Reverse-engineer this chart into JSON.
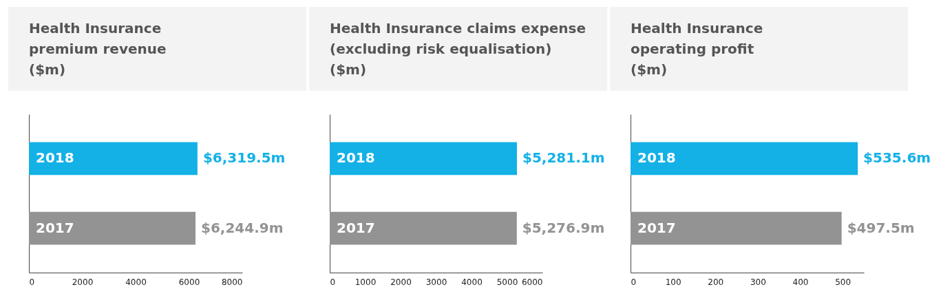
{
  "chart_data": [
    {
      "type": "bar",
      "orientation": "horizontal",
      "title": "Health Insurance\npremium revenue\n($m)",
      "categories": [
        "2018",
        "2017"
      ],
      "values": [
        6319.5,
        6244.9
      ],
      "colors": [
        "#14b1e7",
        "#939393"
      ],
      "value_labels": [
        "$6,319.5m",
        "$6,244.9m"
      ],
      "xlim": [
        0,
        8000
      ],
      "xticks": [
        0,
        2000,
        4000,
        6000,
        8000
      ],
      "tick_labels": "x",
      "grid": false
    },
    {
      "type": "bar",
      "orientation": "horizontal",
      "title": "Health Insurance claims expense\n(excluding risk equalisation)\n($m)",
      "categories": [
        "2018",
        "2017"
      ],
      "values": [
        5281.1,
        5276.9
      ],
      "colors": [
        "#14b1e7",
        "#939393"
      ],
      "value_labels": [
        "$5,281.1m",
        "$5,276.9m"
      ],
      "xlim": [
        0,
        6000
      ],
      "xticks": [
        0,
        1000,
        2000,
        3000,
        4000,
        5000,
        6000
      ],
      "tick_labels": "x",
      "grid": false
    },
    {
      "type": "bar",
      "orientation": "horizontal",
      "title": "Health Insurance\noperating profit\n($m)",
      "categories": [
        "2018",
        "2017"
      ],
      "values": [
        535.6,
        497.5
      ],
      "colors": [
        "#14b1e7",
        "#939393"
      ],
      "value_labels": [
        "$535.6m",
        "$497.5m"
      ],
      "xlim": [
        0,
        550
      ],
      "xticks": [
        0,
        100,
        200,
        300,
        400,
        500
      ],
      "tick_labels": "x",
      "grid": false
    }
  ]
}
